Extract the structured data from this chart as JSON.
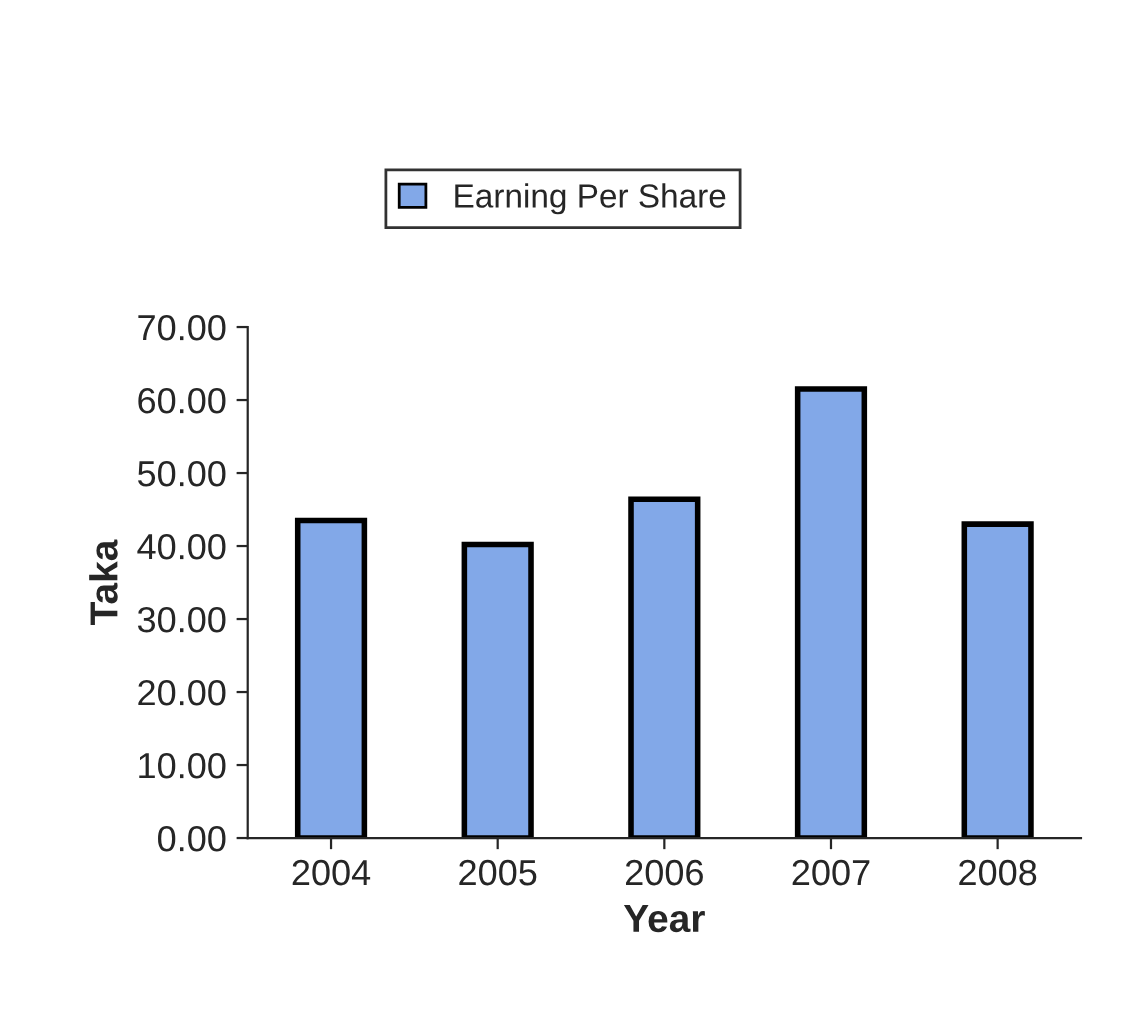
{
  "chart_data": {
    "type": "bar",
    "xlabel": "Year",
    "ylabel": "Taka",
    "categories": [
      "2004",
      "2005",
      "2006",
      "2007",
      "2008"
    ],
    "series": [
      {
        "name": "Earning Per Share",
        "color": "#82a8e8",
        "values": [
          43.5,
          40.2,
          46.4,
          61.5,
          43.0
        ]
      }
    ],
    "ylim": [
      0,
      70
    ],
    "yticks": [
      {
        "value": 0,
        "label": "0.00"
      },
      {
        "value": 10,
        "label": "10.00"
      },
      {
        "value": 20,
        "label": "20.00"
      },
      {
        "value": 30,
        "label": "30.00"
      },
      {
        "value": 40,
        "label": "40.00"
      },
      {
        "value": 50,
        "label": "50.00"
      },
      {
        "value": 60,
        "label": "60.00"
      },
      {
        "value": 70,
        "label": "70.00"
      }
    ],
    "grid": false,
    "legend": "top"
  }
}
